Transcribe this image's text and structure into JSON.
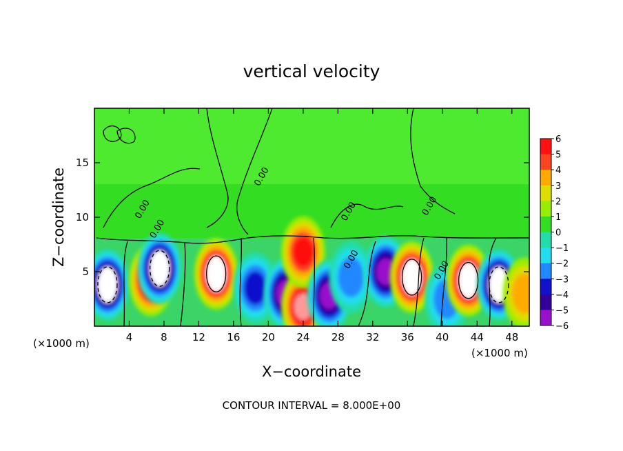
{
  "chart_data": {
    "type": "heatmap",
    "title": "vertical velocity",
    "xlabel": "X−coordinate",
    "ylabel": "Z−coordinate",
    "x_scale_note": "(×1000 m)",
    "z_scale_note": "(×1000 m)",
    "xlim": [
      0,
      50
    ],
    "ylim": [
      0,
      20
    ],
    "x_ticks": [
      "4",
      "8",
      "12",
      "16",
      "20",
      "24",
      "28",
      "32",
      "36",
      "40",
      "44",
      "48"
    ],
    "x_tick_values": [
      4,
      8,
      12,
      16,
      20,
      24,
      28,
      32,
      36,
      40,
      44,
      48
    ],
    "y_ticks": [
      "5",
      "10",
      "15"
    ],
    "y_tick_values": [
      5,
      10,
      15
    ],
    "colorbar": {
      "labels": [
        "6",
        "5",
        "4",
        "3",
        "2",
        "1",
        "0",
        "−1",
        "−2",
        "−3",
        "−4",
        "−5",
        "−6"
      ],
      "values": [
        6,
        5,
        4,
        3,
        2,
        1,
        0,
        -1,
        -2,
        -3,
        -4,
        -5,
        -6
      ]
    },
    "contour_labels": [
      "0.00",
      "0.00",
      "0.00",
      "0.00",
      "0.00",
      "0.00",
      "0.00"
    ],
    "contour_label_positions": [
      [
        19.5,
        13.6
      ],
      [
        5.8,
        10.6
      ],
      [
        29.5,
        10.4
      ],
      [
        38.8,
        10.9
      ],
      [
        29.8,
        6.0
      ],
      [
        40.2,
        5.0
      ],
      [
        7.5,
        8.8
      ]
    ],
    "cells": [
      {
        "x": 1.5,
        "z": 3.8,
        "w": -6.5
      },
      {
        "x": 6.5,
        "z": 4.2,
        "w": 5.2
      },
      {
        "x": 7.5,
        "z": 5.3,
        "w": -6.4
      },
      {
        "x": 14.0,
        "z": 4.8,
        "w": 6.8
      },
      {
        "x": 18.5,
        "z": 3.5,
        "w": -4.0
      },
      {
        "x": 22.0,
        "z": 3.0,
        "w": -5.8
      },
      {
        "x": 24.0,
        "z": 1.8,
        "w": 6.0
      },
      {
        "x": 24.0,
        "z": 6.8,
        "w": 4.5
      },
      {
        "x": 27.0,
        "z": 2.8,
        "w": -5.5
      },
      {
        "x": 29.5,
        "z": 4.5,
        "w": -3.0
      },
      {
        "x": 33.5,
        "z": 5.0,
        "w": -5.5
      },
      {
        "x": 36.5,
        "z": 4.5,
        "w": 6.5
      },
      {
        "x": 40.5,
        "z": 2.5,
        "w": -2.5
      },
      {
        "x": 43.0,
        "z": 4.2,
        "w": 6.5
      },
      {
        "x": 46.5,
        "z": 3.8,
        "w": -6.2
      },
      {
        "x": 49.5,
        "z": 3.0,
        "w": 2.5
      }
    ]
  },
  "footer": {
    "contour_interval": "CONTOUR INTERVAL = 8.000E+00"
  }
}
